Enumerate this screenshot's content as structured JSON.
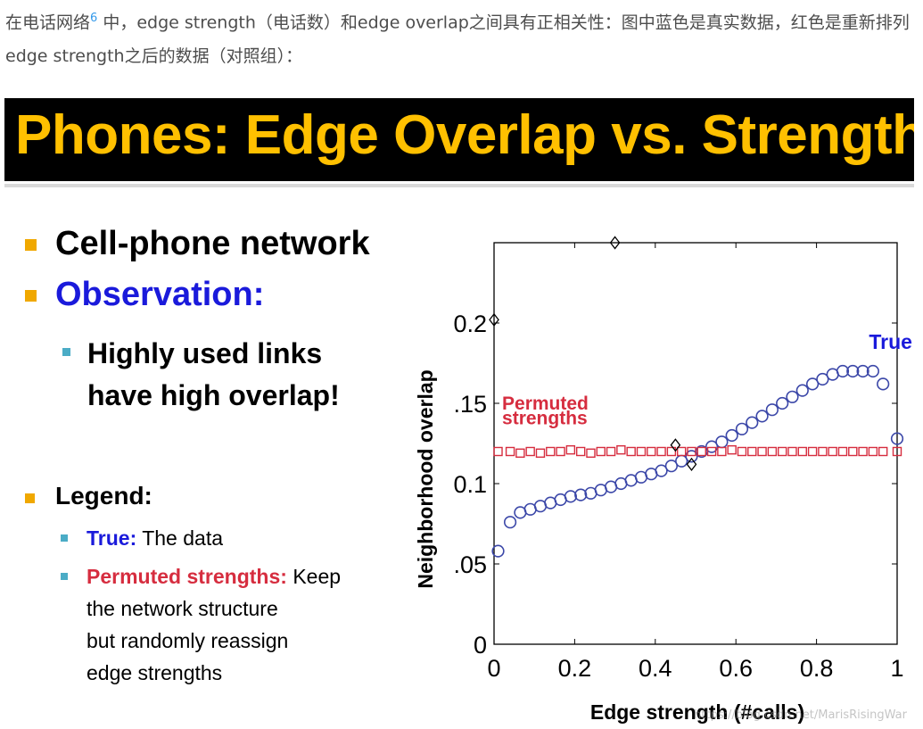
{
  "intro": {
    "text_before": "在电话网络",
    "footnote": "6",
    "text_after": " 中，edge strength（电话数）和edge overlap之间具有正相关性：图中蓝色是真实数据，红色是重新排列edge strength之后的数据（对照组）："
  },
  "slide": {
    "title": "Phones: Edge Overlap vs. Strength",
    "bullets": {
      "cell_phone": "Cell-phone network",
      "observation": "Observation:",
      "highly_line1": "Highly used links",
      "highly_line2": "have high overlap!",
      "legend": "Legend:",
      "true_label": "True:",
      "true_text": " The data",
      "perm_label": "Permuted strengths:",
      "perm_text1": " Keep",
      "perm_text2": "the network structure",
      "perm_text3": "but randomly reassign",
      "perm_text4": "edge strengths"
    },
    "colors": {
      "accent_bullet": "#f0a800",
      "sub_bullet": "#4bacc6",
      "blue": "#1a1adb",
      "red": "#d62d3f",
      "title": "#ffc000"
    }
  },
  "chart_data": {
    "type": "scatter",
    "xlabel": "Edge strength (#calls)",
    "ylabel": "Neighborhood  overlap",
    "xlim": [
      0,
      1
    ],
    "ylim": [
      0,
      0.25
    ],
    "x_ticks": [
      "0",
      "0.2",
      "0.4",
      "0.6",
      "0.8",
      "1"
    ],
    "y_ticks": [
      "0",
      ".05",
      "0.1",
      ".15",
      "0.2"
    ],
    "series": [
      {
        "name": "True",
        "marker": "circle",
        "color": "#3b47a8",
        "x": [
          0.01,
          0.04,
          0.065,
          0.09,
          0.115,
          0.14,
          0.165,
          0.19,
          0.215,
          0.24,
          0.265,
          0.29,
          0.315,
          0.34,
          0.365,
          0.39,
          0.415,
          0.44,
          0.465,
          0.49,
          0.515,
          0.54,
          0.565,
          0.59,
          0.615,
          0.64,
          0.665,
          0.69,
          0.715,
          0.74,
          0.765,
          0.79,
          0.815,
          0.84,
          0.865,
          0.89,
          0.915,
          0.94,
          0.965,
          1.0
        ],
        "y": [
          0.058,
          0.076,
          0.082,
          0.084,
          0.086,
          0.088,
          0.09,
          0.092,
          0.093,
          0.094,
          0.096,
          0.098,
          0.1,
          0.102,
          0.104,
          0.106,
          0.108,
          0.111,
          0.114,
          0.117,
          0.12,
          0.123,
          0.126,
          0.13,
          0.134,
          0.138,
          0.142,
          0.146,
          0.15,
          0.154,
          0.158,
          0.162,
          0.165,
          0.168,
          0.17,
          0.17,
          0.17,
          0.17,
          0.162,
          0.128
        ]
      },
      {
        "name": "Permuted strengths",
        "marker": "square",
        "color": "#d62d3f",
        "x": [
          0.01,
          0.04,
          0.065,
          0.09,
          0.115,
          0.14,
          0.165,
          0.19,
          0.215,
          0.24,
          0.265,
          0.29,
          0.315,
          0.34,
          0.365,
          0.39,
          0.415,
          0.44,
          0.465,
          0.49,
          0.515,
          0.54,
          0.565,
          0.59,
          0.615,
          0.64,
          0.665,
          0.69,
          0.715,
          0.74,
          0.765,
          0.79,
          0.815,
          0.84,
          0.865,
          0.89,
          0.915,
          0.94,
          0.965,
          1.0
        ],
        "y": [
          0.12,
          0.12,
          0.119,
          0.12,
          0.119,
          0.12,
          0.12,
          0.121,
          0.12,
          0.119,
          0.12,
          0.12,
          0.121,
          0.12,
          0.12,
          0.12,
          0.12,
          0.12,
          0.12,
          0.12,
          0.12,
          0.12,
          0.12,
          0.121,
          0.12,
          0.12,
          0.12,
          0.12,
          0.12,
          0.12,
          0.12,
          0.12,
          0.12,
          0.12,
          0.12,
          0.12,
          0.12,
          0.12,
          0.12,
          0.12
        ]
      },
      {
        "name": "",
        "marker": "diamond",
        "color": "#000000",
        "x": [
          0.0,
          0.3,
          0.45,
          0.49
        ],
        "y": [
          0.202,
          0.25,
          0.124,
          0.112
        ]
      }
    ],
    "annotations": [
      {
        "text": "True",
        "x": 0.93,
        "y": 0.184,
        "color": "#1a1adb"
      },
      {
        "text": "Permuted",
        "x": 0.02,
        "y": 0.146,
        "color": "#d62d3f"
      },
      {
        "text": "strengths",
        "x": 0.02,
        "y": 0.137,
        "color": "#d62d3f"
      }
    ],
    "grid": false
  },
  "watermark": "https://blog.csdn.net/MarisRisingWar"
}
